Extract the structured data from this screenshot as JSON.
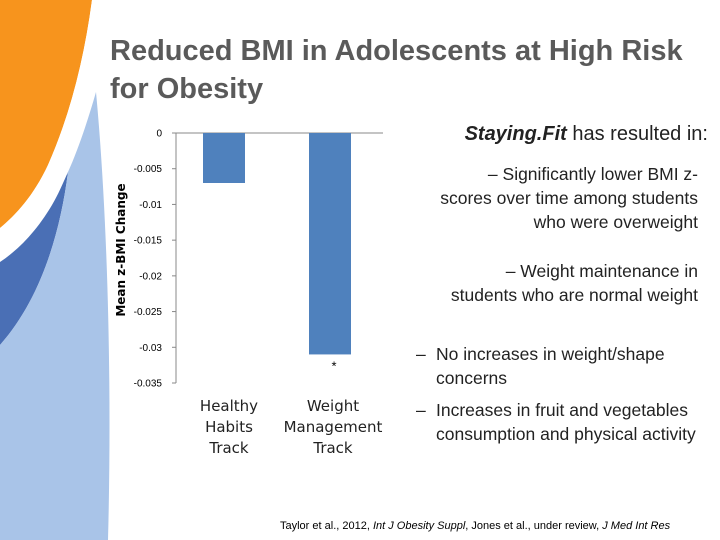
{
  "slide": {
    "title": "Reduced BMI in Adolescents at High Risk for Obesity",
    "heading_brand": "Staying.Fit",
    "heading_rest": " has resulted in:",
    "bullets": [
      {
        "dash": "–",
        "text": "Significantly lower BMI z-scores over time among students who were overweight"
      },
      {
        "dash": "–",
        "text": "Weight maintenance in students who are normal weight"
      },
      {
        "dash": "–",
        "text": "No increases in weight/shape concerns"
      },
      {
        "dash": "–",
        "text": "Increases in fruit and vegetables consumption and physical activity"
      }
    ],
    "citation": {
      "a": "Taylor et al., 2012, ",
      "b": "Int J Obesity Suppl",
      "c": ", Jones et al., under review, ",
      "d": "J Med Int Res"
    }
  },
  "colors": {
    "bar": "#4f81bd",
    "title": "#5a5a5a",
    "decor_orange": "#f7941d",
    "decor_blue": "#4a6fb5",
    "decor_light_blue": "#a9c4e8"
  },
  "chart_data": {
    "type": "bar",
    "title": "",
    "ylabel": "Mean z-BMI Change",
    "xlabel": "",
    "ylim": [
      -0.035,
      0
    ],
    "yticks": [
      "0",
      "-0.005",
      "-0.01",
      "-0.015",
      "-0.02",
      "-0.025",
      "-0.03",
      "-0.035"
    ],
    "ytick_values": [
      0,
      -0.005,
      -0.01,
      -0.015,
      -0.02,
      -0.025,
      -0.03,
      -0.035
    ],
    "categories": [
      {
        "line1": "Healthy",
        "line2": "Habits",
        "line3": "Track"
      },
      {
        "line1": "Weight",
        "line2": "Management",
        "line3": "Track"
      }
    ],
    "category_names": [
      "Healthy Habits Track",
      "Weight Management Track"
    ],
    "values": [
      -0.007,
      -0.031
    ],
    "annotations": [
      "",
      "*"
    ],
    "grid": false
  }
}
